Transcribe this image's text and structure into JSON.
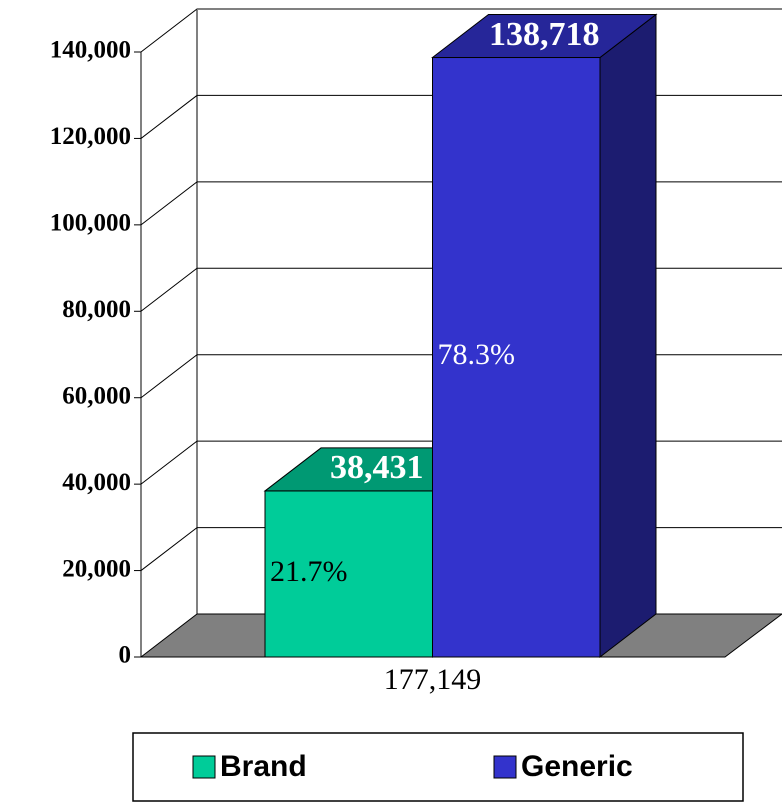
{
  "chart_data": {
    "type": "bar3d",
    "categories": [
      "177,149"
    ],
    "series": [
      {
        "name": "Brand",
        "color": "#00cc99",
        "values": [
          38431
        ],
        "value_labels": [
          "38,431"
        ],
        "percent_label": "21.7%"
      },
      {
        "name": "Generic",
        "color": "#3333cc",
        "values": [
          138718
        ],
        "value_labels": [
          "138,718"
        ],
        "percent_label": "78.3%"
      }
    ],
    "ylim": [
      0,
      140000
    ],
    "yticks": [
      0,
      {
        "value": 20000,
        "label": "20,000"
      },
      {
        "value": 40000,
        "label": "40,000"
      },
      {
        "value": 60000,
        "label": "60,000"
      },
      {
        "value": 80000,
        "label": "80,000"
      },
      {
        "value": 100000,
        "label": "100,000"
      },
      {
        "value": 120000,
        "label": "120,000"
      },
      {
        "value": 140000,
        "label": "140,000"
      }
    ],
    "grid": true,
    "legend": "bottom"
  }
}
